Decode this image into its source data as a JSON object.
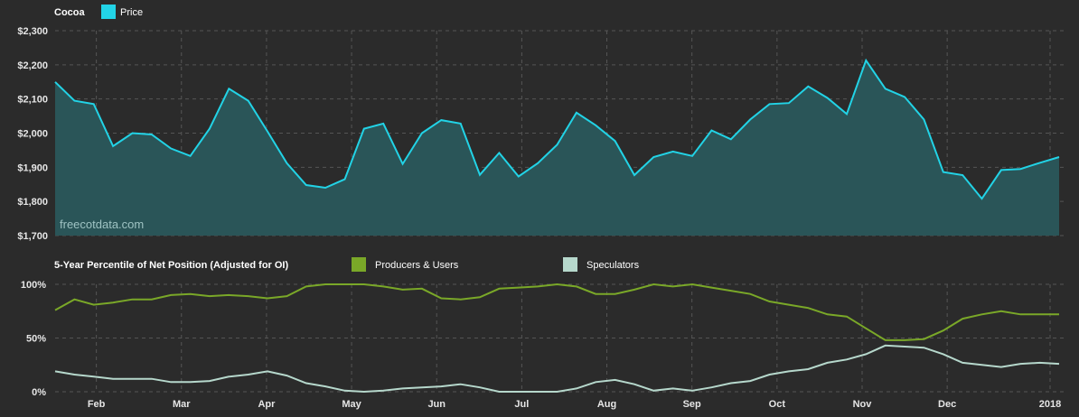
{
  "colors": {
    "background": "#2b2b2b",
    "price_line": "#22d3e6",
    "price_fill": "#2a5558",
    "producers": "#7aa828",
    "speculators": "#b6d8cc",
    "grid": "#555555",
    "text": "#e6e6e6"
  },
  "watermark": "freecotdata.com",
  "chart_data": [
    {
      "type": "area",
      "title": "Cocoa",
      "legend": [
        "Price"
      ],
      "grid": true,
      "legend_position": "top-left",
      "ylim": [
        1700,
        2300
      ],
      "y_ticks": [
        "$2,300",
        "$2,200",
        "$2,100",
        "$2,000",
        "$1,900",
        "$1,800",
        "$1,700"
      ],
      "y_tick_values": [
        2300,
        2200,
        2100,
        2000,
        1900,
        1800,
        1700
      ],
      "series": [
        {
          "name": "Price",
          "values": [
            2150,
            2095,
            2085,
            1962,
            2000,
            1996,
            1955,
            1933,
            2013,
            2130,
            2095,
            2005,
            1912,
            1848,
            1840,
            1865,
            2013,
            2028,
            1910,
            2000,
            2038,
            2028,
            1878,
            1942,
            1873,
            1912,
            1966,
            2060,
            2023,
            1977,
            1877,
            1930,
            1946,
            1933,
            2008,
            1982,
            2040,
            2085,
            2088,
            2137,
            2103,
            2056,
            2213,
            2130,
            2106,
            2040,
            1886,
            1877,
            1808,
            1892,
            1895,
            1913,
            1930
          ]
        }
      ]
    },
    {
      "type": "line",
      "title": "5-Year Percentile of Net Position (Adjusted for OI)",
      "grid": true,
      "legend_position": "top-left",
      "ylim": [
        0,
        100
      ],
      "y_ticks": [
        "100%",
        "50%",
        "0%"
      ],
      "y_tick_values": [
        100,
        50,
        0
      ],
      "x_labels": [
        "Feb",
        "Mar",
        "Apr",
        "May",
        "Jun",
        "Jul",
        "Aug",
        "Sep",
        "Oct",
        "Nov",
        "Dec",
        "2018"
      ],
      "series": [
        {
          "name": "Producers & Users",
          "values": [
            76,
            86,
            81,
            83,
            86,
            86,
            90,
            91,
            89,
            90,
            89,
            87,
            89,
            98,
            100,
            100,
            100,
            98,
            95,
            96,
            87,
            86,
            88,
            96,
            97,
            98,
            100,
            98,
            91,
            91,
            95,
            100,
            98,
            100,
            97,
            94,
            91,
            84,
            81,
            78,
            72,
            70,
            59,
            48,
            48,
            49,
            57,
            68,
            72,
            75,
            72,
            72,
            72
          ]
        },
        {
          "name": "Speculators",
          "values": [
            19,
            16,
            14,
            12,
            12,
            12,
            9,
            9,
            10,
            14,
            16,
            19,
            15,
            8,
            5,
            1,
            0,
            1,
            3,
            4,
            5,
            7,
            4,
            0,
            0,
            0,
            0,
            3,
            9,
            11,
            7,
            1,
            3,
            1,
            4,
            8,
            10,
            16,
            19,
            21,
            27,
            30,
            35,
            43,
            42,
            41,
            35,
            27,
            25,
            23,
            26,
            27,
            26
          ]
        }
      ]
    }
  ]
}
